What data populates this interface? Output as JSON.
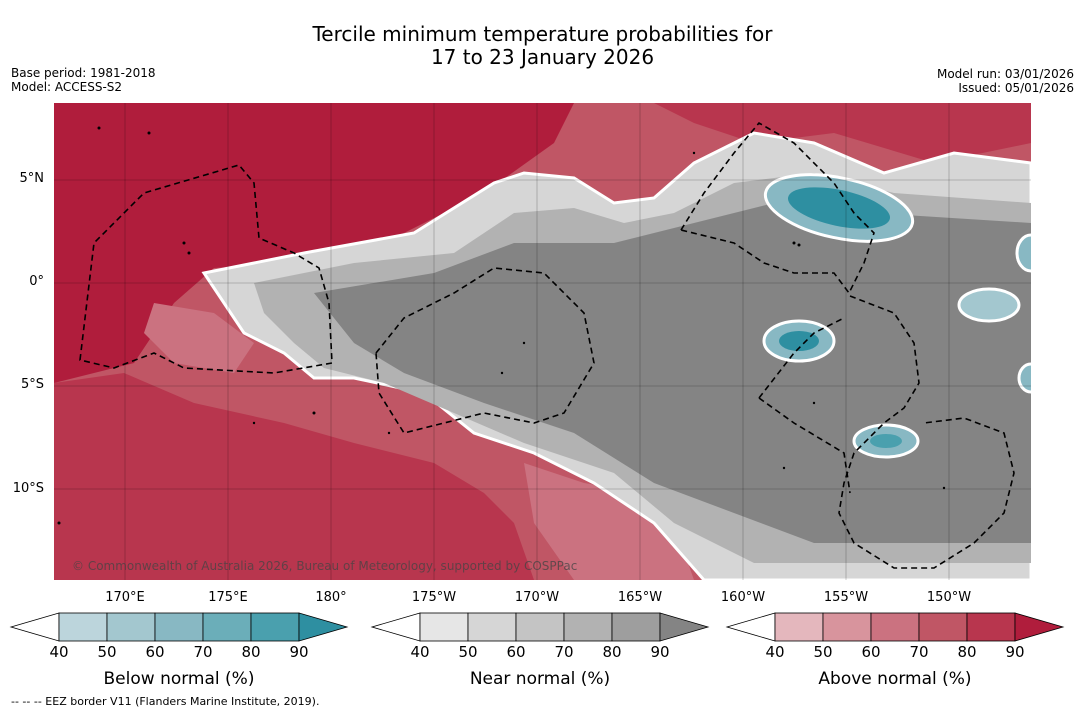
{
  "header": {
    "title_line1": "Tercile minimum temperature probabilities for",
    "title_line2": "17 to 23 January 2026",
    "base_period": "Base period: 1981-2018",
    "model": "Model: ACCESS-S2",
    "model_run": "Model run: 03/01/2026",
    "issued": "Issued: 05/01/2026"
  },
  "map": {
    "latitude_labels": [
      "5°N",
      "0°",
      "5°S",
      "10°S"
    ],
    "longitude_labels": [
      "170°E",
      "175°E",
      "180°",
      "175°W",
      "170°W",
      "165°W",
      "160°W",
      "155°W",
      "150°W"
    ],
    "copyright": "© Commonwealth of Australia 2026, Bureau of Meteorology, supported by COSPPac"
  },
  "colorbars": [
    {
      "label": "Below normal (%)",
      "ticks": [
        "40",
        "50",
        "60",
        "70",
        "80",
        "90"
      ],
      "colors": [
        "#bcd5dc",
        "#a3c7cf",
        "#88b8c3",
        "#6baeb9",
        "#4aa0ae",
        "#2e8fa1"
      ]
    },
    {
      "label": "Near normal (%)",
      "ticks": [
        "40",
        "50",
        "60",
        "70",
        "80",
        "90"
      ],
      "colors": [
        "#e6e6e6",
        "#d6d6d6",
        "#c4c4c4",
        "#b2b2b2",
        "#9e9e9e",
        "#848484"
      ]
    },
    {
      "label": "Above normal (%)",
      "ticks": [
        "40",
        "50",
        "60",
        "70",
        "80",
        "90"
      ],
      "colors": [
        "#e4b7bd",
        "#d8949d",
        "#cb7280",
        "#c05665",
        "#b8364e",
        "#b01d3c"
      ]
    }
  ],
  "footer": "--  --  -- EEZ border V11 (Flanders Marine Institute, 2019)."
}
